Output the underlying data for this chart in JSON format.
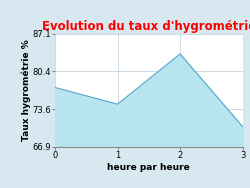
{
  "title": "Evolution du taux d'hygrométrie",
  "title_color": "#ff0000",
  "xlabel": "heure par heure",
  "ylabel": "Taux hygrométrie %",
  "x": [
    0,
    1,
    2,
    3
  ],
  "y": [
    77.5,
    74.5,
    83.5,
    70.5
  ],
  "ylim": [
    66.9,
    87.1
  ],
  "xlim": [
    0,
    3
  ],
  "yticks": [
    66.9,
    73.6,
    80.4,
    87.1
  ],
  "xticks": [
    0,
    1,
    2,
    3
  ],
  "fill_color": "#b8e4f0",
  "line_color": "#55aacc",
  "background_color": "#d8e8f0",
  "plot_bg_color": "#ffffff",
  "grid_color": "#bbccdd",
  "title_fontsize": 8.5,
  "axis_label_fontsize": 6.5,
  "tick_fontsize": 6
}
